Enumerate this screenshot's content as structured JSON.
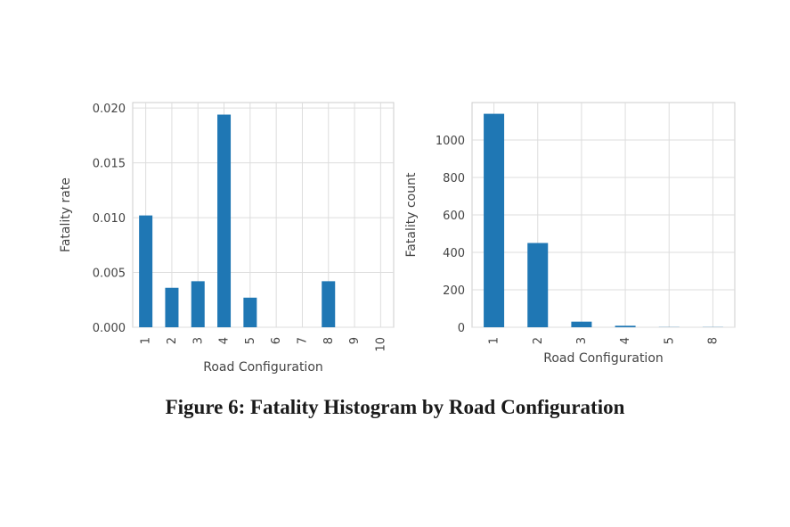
{
  "caption": "Figure 6: Fatality Histogram by Road Configuration",
  "chart_data": [
    {
      "type": "bar",
      "categories": [
        "1",
        "2",
        "3",
        "4",
        "5",
        "6",
        "7",
        "8",
        "9",
        "10"
      ],
      "values": [
        0.0102,
        0.0036,
        0.0042,
        0.0194,
        0.0027,
        0,
        0,
        0.0042,
        0,
        0
      ],
      "ylim": [
        0,
        0.0205
      ],
      "yticks": [
        "0.000",
        "0.005",
        "0.010",
        "0.015",
        "0.020"
      ],
      "ytick_values": [
        0,
        0.005,
        0.01,
        0.015,
        0.02
      ],
      "xlabel": "Road Configuration",
      "ylabel": "Fatality rate",
      "grid": true,
      "bar_color": "#1f77b4"
    },
    {
      "type": "bar",
      "categories": [
        "1",
        "2",
        "3",
        "4",
        "5",
        "8"
      ],
      "values": [
        1140,
        450,
        30,
        8,
        1,
        1
      ],
      "ylim": [
        0,
        1200
      ],
      "yticks": [
        "0",
        "200",
        "400",
        "600",
        "800",
        "1000"
      ],
      "ytick_values": [
        0,
        200,
        400,
        600,
        800,
        1000
      ],
      "xlabel": "Road Configuration",
      "ylabel": "Fatality count",
      "grid": true,
      "bar_color": "#1f77b4"
    }
  ]
}
